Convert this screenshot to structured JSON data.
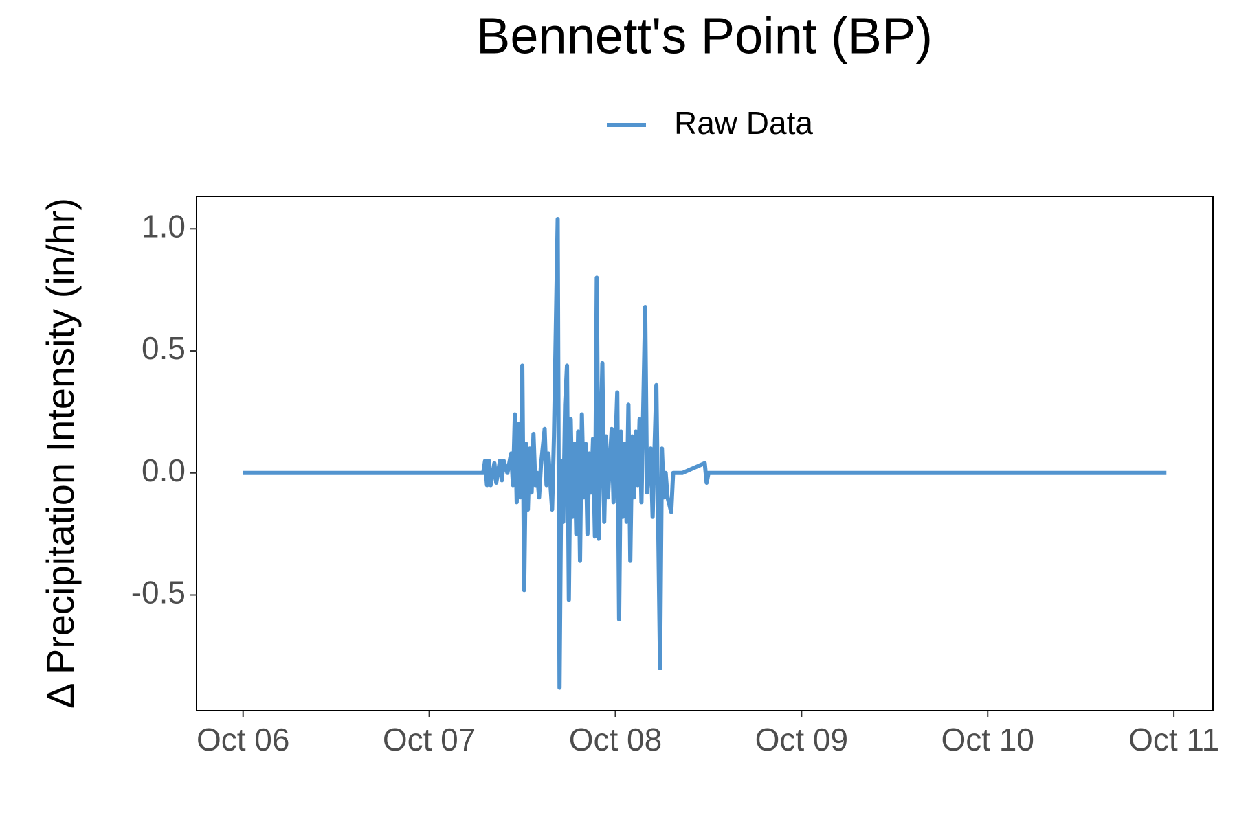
{
  "chart_data": {
    "type": "line",
    "title": "Bennett's Point (BP)",
    "y_label": "Δ Precipitation Intensity (in/hr)",
    "legend": "top",
    "grid": false,
    "x": [
      6.0,
      7.29,
      7.3,
      7.31,
      7.32,
      7.33,
      7.35,
      7.36,
      7.38,
      7.39,
      7.4,
      7.42,
      7.44,
      7.45,
      7.46,
      7.47,
      7.48,
      7.49,
      7.5,
      7.51,
      7.52,
      7.53,
      7.54,
      7.55,
      7.56,
      7.57,
      7.58,
      7.59,
      7.6,
      7.62,
      7.63,
      7.64,
      7.66,
      7.67,
      7.69,
      7.7,
      7.71,
      7.72,
      7.73,
      7.74,
      7.75,
      7.76,
      7.77,
      7.78,
      7.79,
      7.8,
      7.81,
      7.82,
      7.83,
      7.84,
      7.85,
      7.86,
      7.87,
      7.88,
      7.89,
      7.9,
      7.91,
      7.92,
      7.93,
      7.94,
      7.95,
      7.96,
      7.98,
      7.99,
      8.01,
      8.02,
      8.03,
      8.04,
      8.05,
      8.06,
      8.07,
      8.08,
      8.09,
      8.1,
      8.11,
      8.12,
      8.13,
      8.14,
      8.16,
      8.17,
      8.19,
      8.2,
      8.22,
      8.24,
      8.25,
      8.26,
      8.27,
      8.28,
      8.3,
      8.31,
      8.33,
      8.36,
      8.48,
      8.49,
      8.5,
      10.96
    ],
    "series": [
      {
        "name": "Raw Data",
        "color": "#5294cf",
        "values": [
          0,
          0,
          0.05,
          -0.05,
          0.05,
          -0.05,
          0.04,
          -0.04,
          0.05,
          -0.03,
          0.05,
          0.0,
          0.08,
          -0.05,
          0.24,
          -0.12,
          0.2,
          -0.1,
          0.44,
          -0.48,
          0.12,
          -0.15,
          0.1,
          -0.08,
          0.16,
          -0.05,
          0.0,
          -0.1,
          0.03,
          0.18,
          -0.05,
          0.08,
          -0.15,
          0.15,
          1.04,
          -0.88,
          0.05,
          -0.2,
          0.28,
          0.44,
          -0.52,
          0.22,
          -0.18,
          0.12,
          -0.25,
          0.17,
          -0.36,
          0.24,
          -0.1,
          0.12,
          -0.25,
          0.08,
          -0.08,
          0.14,
          -0.26,
          0.8,
          -0.27,
          0.1,
          0.45,
          -0.2,
          0.15,
          -0.1,
          0.18,
          -0.12,
          0.33,
          -0.6,
          0.17,
          -0.18,
          0.12,
          -0.2,
          0.28,
          -0.36,
          0.15,
          -0.1,
          0.17,
          -0.05,
          0.22,
          -0.12,
          0.68,
          -0.08,
          0.1,
          -0.18,
          0.36,
          -0.8,
          0.1,
          -0.1,
          0.0,
          -0.1,
          -0.16,
          0.0,
          0.0,
          0.0,
          0.04,
          -0.04,
          0.0,
          0
        ]
      }
    ],
    "xlim": [
      5.75,
      11.21
    ],
    "xticks": [
      {
        "value": 6,
        "label": "Oct 06"
      },
      {
        "value": 7,
        "label": "Oct 07"
      },
      {
        "value": 8,
        "label": "Oct 08"
      },
      {
        "value": 9,
        "label": "Oct 09"
      },
      {
        "value": 10,
        "label": "Oct 10"
      },
      {
        "value": 11,
        "label": "Oct 11"
      }
    ],
    "ylim": [
      -0.974,
      1.133
    ],
    "yticks": [
      {
        "value": -0.5,
        "label": "-0.5"
      },
      {
        "value": 0,
        "label": "0.0"
      },
      0.5,
      {
        "value": 1,
        "label": "1.0"
      }
    ]
  }
}
